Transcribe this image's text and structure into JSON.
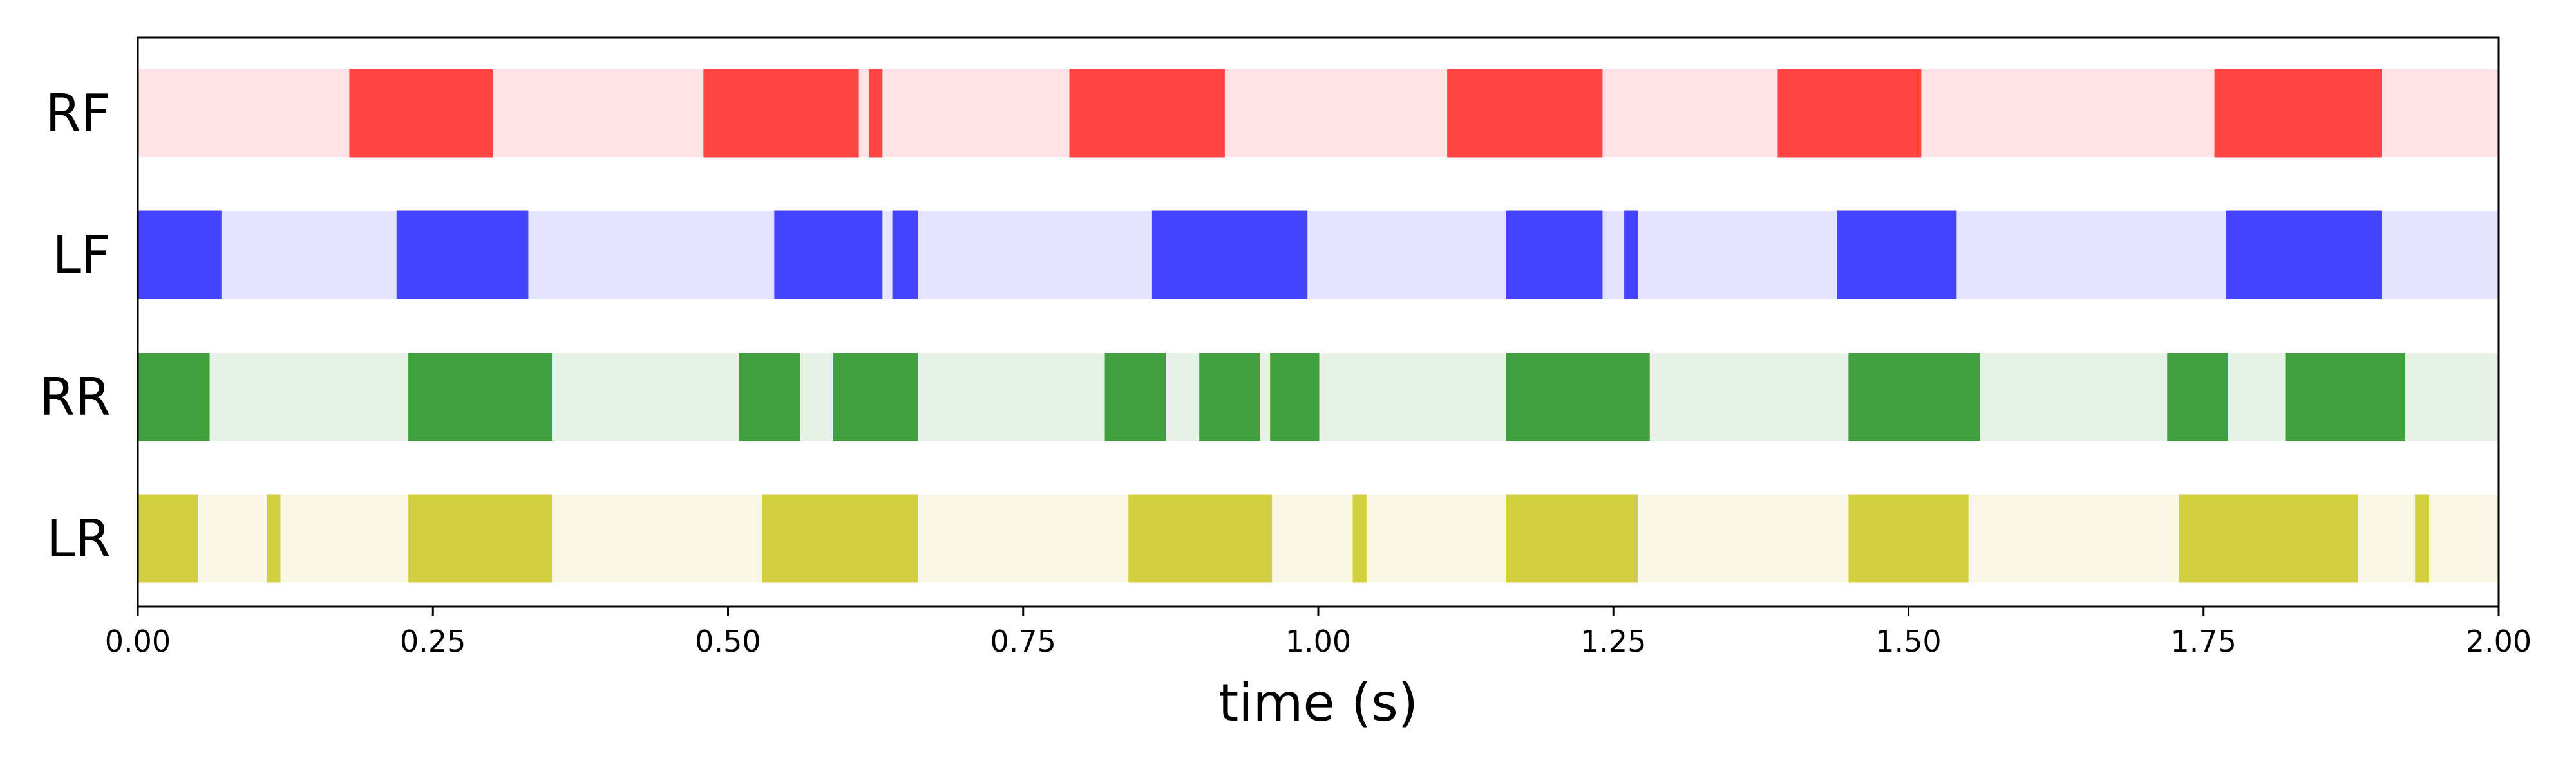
{
  "chart_data": {
    "type": "broken-barh",
    "title": "",
    "xlabel": "time (s)",
    "ylabel": "",
    "xlim": [
      0.0,
      2.0
    ],
    "x_ticks": [
      "0.00",
      "0.25",
      "0.50",
      "0.75",
      "1.00",
      "1.25",
      "1.50",
      "1.75",
      "2.00"
    ],
    "x_tick_values": [
      0.0,
      0.25,
      0.5,
      0.75,
      1.0,
      1.25,
      1.5,
      1.75,
      2.0
    ],
    "grid": false,
    "legend": "none",
    "series": [
      {
        "name": "RF",
        "color": "#ff4444",
        "background": "#ffe2e4",
        "intervals": [
          [
            0.18,
            0.3
          ],
          [
            0.48,
            0.61
          ],
          [
            0.62,
            0.63
          ],
          [
            0.79,
            0.92
          ],
          [
            1.11,
            1.24
          ],
          [
            1.39,
            1.51
          ],
          [
            1.76,
            1.9
          ]
        ]
      },
      {
        "name": "LF",
        "color": "#4444ff",
        "background": "#e4e4fe",
        "intervals": [
          [
            0.0,
            0.07
          ],
          [
            0.22,
            0.33
          ],
          [
            0.54,
            0.63
          ],
          [
            0.64,
            0.66
          ],
          [
            0.86,
            0.99
          ],
          [
            1.16,
            1.24
          ],
          [
            1.26,
            1.27
          ],
          [
            1.44,
            1.54
          ],
          [
            1.77,
            1.9
          ]
        ]
      },
      {
        "name": "RR",
        "color": "#40a040",
        "background": "#e6f2e6",
        "intervals": [
          [
            0.0,
            0.06
          ],
          [
            0.23,
            0.35
          ],
          [
            0.51,
            0.56
          ],
          [
            0.59,
            0.66
          ],
          [
            0.82,
            0.87
          ],
          [
            0.9,
            0.95
          ],
          [
            0.96,
            1.0
          ],
          [
            1.16,
            1.28
          ],
          [
            1.45,
            1.56
          ],
          [
            1.72,
            1.77
          ],
          [
            1.82,
            1.92
          ]
        ]
      },
      {
        "name": "LR",
        "color": "#d0d040",
        "background": "#f8f6e4",
        "intervals": [
          [
            0.0,
            0.05
          ],
          [
            0.11,
            0.12
          ],
          [
            0.23,
            0.35
          ],
          [
            0.53,
            0.66
          ],
          [
            0.84,
            0.96
          ],
          [
            1.03,
            1.04
          ],
          [
            1.16,
            1.27
          ],
          [
            1.45,
            1.55
          ],
          [
            1.73,
            1.88
          ],
          [
            1.93,
            1.94
          ]
        ]
      }
    ]
  }
}
